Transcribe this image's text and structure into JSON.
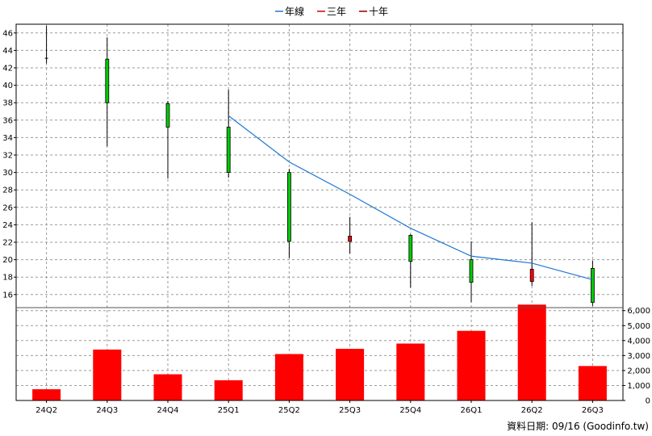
{
  "chart_data": {
    "type": "candlestick+bar",
    "legend": [
      {
        "label": "年線",
        "color": "#1f78d1"
      },
      {
        "label": "三年",
        "color": "#d00000"
      },
      {
        "label": "十年",
        "color": "#8b0000"
      }
    ],
    "categories": [
      "24Q2",
      "24Q3",
      "24Q4",
      "25Q1",
      "25Q2",
      "25Q3",
      "25Q4",
      "26Q1",
      "26Q2",
      "26Q3"
    ],
    "price": {
      "ylim": [
        14.5,
        47
      ],
      "ticks": [
        16,
        18,
        20,
        22,
        24,
        26,
        28,
        30,
        32,
        34,
        36,
        38,
        40,
        42,
        44,
        46
      ],
      "candles": [
        {
          "open": 43.0,
          "high": 46.8,
          "low": 42.5,
          "close": 43.1,
          "color": "#000000"
        },
        {
          "open": 38.0,
          "high": 45.5,
          "low": 33.0,
          "close": 43.0,
          "color": "#00cc00"
        },
        {
          "open": 35.2,
          "high": 38.2,
          "low": 29.3,
          "close": 37.9,
          "color": "#00cc00"
        },
        {
          "open": 30.0,
          "high": 39.5,
          "low": 29.4,
          "close": 35.2,
          "color": "#00cc00"
        },
        {
          "open": 22.1,
          "high": 30.4,
          "low": 20.2,
          "close": 30.0,
          "color": "#00cc00"
        },
        {
          "open": 22.7,
          "high": 24.9,
          "low": 20.7,
          "close": 22.1,
          "color": "#ff0000"
        },
        {
          "open": 19.8,
          "high": 22.9,
          "low": 16.8,
          "close": 22.8,
          "color": "#00cc00"
        },
        {
          "open": 17.4,
          "high": 22.1,
          "low": 15.1,
          "close": 20.0,
          "color": "#00cc00"
        },
        {
          "open": 18.9,
          "high": 24.3,
          "low": 17.0,
          "close": 17.5,
          "color": "#ff0000"
        },
        {
          "open": 15.1,
          "high": 19.9,
          "low": 14.7,
          "close": 19.0,
          "color": "#00cc00"
        }
      ],
      "year_line": [
        {
          "i": 3,
          "v": 36.5
        },
        {
          "i": 4,
          "v": 31.2
        },
        {
          "i": 5,
          "v": 27.5
        },
        {
          "i": 6,
          "v": 23.6
        },
        {
          "i": 7,
          "v": 20.4
        },
        {
          "i": 8,
          "v": 19.6
        },
        {
          "i": 9,
          "v": 17.7
        }
      ]
    },
    "volume": {
      "ylim": [
        0,
        6000
      ],
      "ticks": [
        0,
        1000,
        2000,
        3000,
        4000,
        5000,
        6000
      ],
      "tick_labels": [
        "0",
        "1,000",
        "2,000",
        "3,000",
        "4,000",
        "5,000",
        "6,000"
      ],
      "values": [
        750,
        3400,
        1750,
        1350,
        3100,
        3450,
        3800,
        4650,
        6400,
        2300
      ],
      "color": "#ff0000"
    },
    "footer": "資料日期: 09/16  (Goodinfo.tw)"
  }
}
